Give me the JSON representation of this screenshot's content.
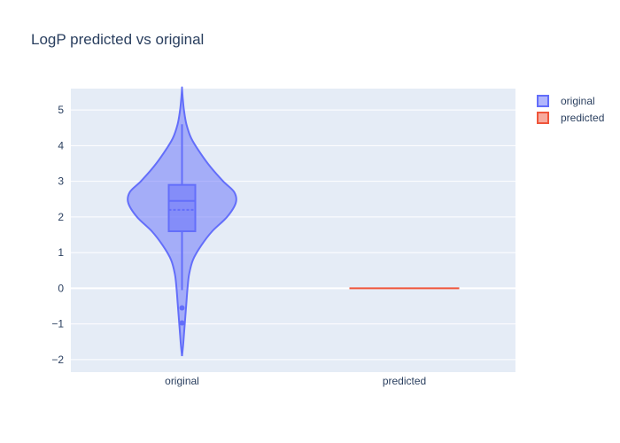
{
  "chart_data": {
    "type": "violin",
    "title": "LogP predicted vs original",
    "xlabel": "",
    "ylabel": "",
    "categories": [
      "original",
      "predicted"
    ],
    "ylim": [
      -2.35,
      5.6
    ],
    "yticks": [
      -2,
      -1,
      0,
      1,
      2,
      3,
      4,
      5
    ],
    "ytick_labels": [
      "−2",
      "−1",
      "0",
      "1",
      "2",
      "3",
      "4",
      "5"
    ],
    "grid": true,
    "legend_position": "top-right",
    "series": [
      {
        "name": "original",
        "color": "#636efa",
        "violin_min": -1.9,
        "violin_max": 5.6,
        "density_profile": [
          [
            -1.9,
            0.0
          ],
          [
            -1.6,
            0.02
          ],
          [
            -1.2,
            0.04
          ],
          [
            -0.8,
            0.06
          ],
          [
            -0.4,
            0.08
          ],
          [
            0.0,
            0.1
          ],
          [
            0.4,
            0.13
          ],
          [
            0.8,
            0.2
          ],
          [
            1.2,
            0.35
          ],
          [
            1.6,
            0.55
          ],
          [
            2.0,
            0.82
          ],
          [
            2.4,
            0.98
          ],
          [
            2.7,
            0.95
          ],
          [
            3.0,
            0.75
          ],
          [
            3.4,
            0.52
          ],
          [
            3.8,
            0.33
          ],
          [
            4.2,
            0.17
          ],
          [
            4.6,
            0.08
          ],
          [
            5.0,
            0.035
          ],
          [
            5.3,
            0.015
          ],
          [
            5.6,
            0.0
          ]
        ],
        "box": {
          "q1": 1.6,
          "median": 2.45,
          "q3": 2.9,
          "mean": 2.2,
          "whisker_low": -0.05,
          "whisker_high": 4.6
        },
        "outliers": [
          -0.55,
          -0.97
        ]
      },
      {
        "name": "predicted",
        "color": "#ef553b",
        "constant_value": 0
      }
    ]
  }
}
